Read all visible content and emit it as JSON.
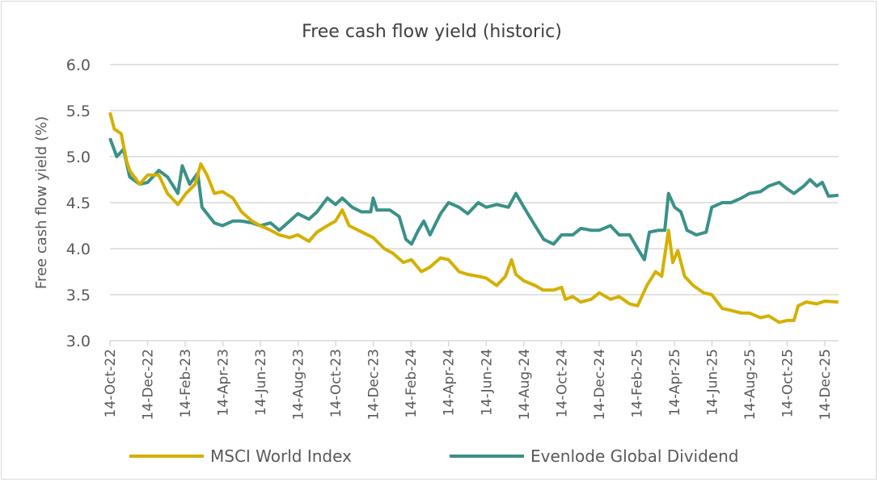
{
  "chart_data": {
    "type": "line",
    "title": "Free cash flow yield (historic)",
    "xlabel": "",
    "ylabel": "Free cash flow yield (%)",
    "ylim": [
      3.0,
      6.0
    ],
    "yticks": [
      "3.0",
      "3.5",
      "4.0",
      "4.5",
      "5.0",
      "5.5",
      "6.0"
    ],
    "xlim": [
      "2022-10-14",
      "2026-01-05"
    ],
    "xticks": [
      "14-Oct-22",
      "14-Dec-22",
      "14-Feb-23",
      "14-Apr-23",
      "14-Jun-23",
      "14-Aug-23",
      "14-Oct-23",
      "14-Dec-23",
      "14-Feb-24",
      "14-Apr-24",
      "14-Jun-24",
      "14-Aug-24",
      "14-Oct-24",
      "14-Dec-24",
      "14-Feb-25",
      "14-Apr-25",
      "14-Jun-25",
      "14-Aug-25",
      "14-Oct-25",
      "14-Dec-25"
    ],
    "grid": true,
    "legend_placement": "bottom",
    "series": [
      {
        "name": "MSCI World Index",
        "color": "#d4b000",
        "points": [
          [
            "2022-10-14",
            5.48
          ],
          [
            "2022-10-21",
            5.3
          ],
          [
            "2022-11-01",
            5.25
          ],
          [
            "2022-11-10",
            4.95
          ],
          [
            "2022-11-15",
            4.85
          ],
          [
            "2022-12-01",
            4.7
          ],
          [
            "2022-12-14",
            4.8
          ],
          [
            "2023-01-01",
            4.8
          ],
          [
            "2023-01-15",
            4.6
          ],
          [
            "2023-02-01",
            4.48
          ],
          [
            "2023-02-14",
            4.6
          ],
          [
            "2023-03-01",
            4.7
          ],
          [
            "2023-03-10",
            4.92
          ],
          [
            "2023-03-20",
            4.8
          ],
          [
            "2023-04-01",
            4.6
          ],
          [
            "2023-04-14",
            4.62
          ],
          [
            "2023-05-01",
            4.55
          ],
          [
            "2023-05-15",
            4.4
          ],
          [
            "2023-06-01",
            4.3
          ],
          [
            "2023-06-14",
            4.25
          ],
          [
            "2023-07-01",
            4.2
          ],
          [
            "2023-07-15",
            4.15
          ],
          [
            "2023-08-01",
            4.12
          ],
          [
            "2023-08-14",
            4.15
          ],
          [
            "2023-09-01",
            4.08
          ],
          [
            "2023-09-14",
            4.18
          ],
          [
            "2023-10-01",
            4.25
          ],
          [
            "2023-10-14",
            4.3
          ],
          [
            "2023-10-25",
            4.42
          ],
          [
            "2023-11-05",
            4.25
          ],
          [
            "2023-11-20",
            4.2
          ],
          [
            "2023-12-14",
            4.12
          ],
          [
            "2024-01-01",
            4.0
          ],
          [
            "2024-01-15",
            3.95
          ],
          [
            "2024-02-01",
            3.85
          ],
          [
            "2024-02-14",
            3.88
          ],
          [
            "2024-03-01",
            3.75
          ],
          [
            "2024-03-15",
            3.8
          ],
          [
            "2024-04-01",
            3.9
          ],
          [
            "2024-04-14",
            3.88
          ],
          [
            "2024-05-01",
            3.75
          ],
          [
            "2024-05-15",
            3.72
          ],
          [
            "2024-06-01",
            3.7
          ],
          [
            "2024-06-14",
            3.68
          ],
          [
            "2024-07-01",
            3.6
          ],
          [
            "2024-07-15",
            3.7
          ],
          [
            "2024-07-25",
            3.88
          ],
          [
            "2024-08-01",
            3.72
          ],
          [
            "2024-08-14",
            3.65
          ],
          [
            "2024-09-01",
            3.6
          ],
          [
            "2024-09-14",
            3.55
          ],
          [
            "2024-10-01",
            3.55
          ],
          [
            "2024-10-14",
            3.58
          ],
          [
            "2024-10-20",
            3.45
          ],
          [
            "2024-11-01",
            3.48
          ],
          [
            "2024-11-14",
            3.42
          ],
          [
            "2024-12-01",
            3.45
          ],
          [
            "2024-12-14",
            3.52
          ],
          [
            "2025-01-01",
            3.45
          ],
          [
            "2025-01-15",
            3.48
          ],
          [
            "2025-02-01",
            3.4
          ],
          [
            "2025-02-14",
            3.38
          ],
          [
            "2025-03-01",
            3.6
          ],
          [
            "2025-03-15",
            3.75
          ],
          [
            "2025-03-25",
            3.7
          ],
          [
            "2025-04-05",
            4.2
          ],
          [
            "2025-04-12",
            3.85
          ],
          [
            "2025-04-20",
            3.98
          ],
          [
            "2025-05-01",
            3.7
          ],
          [
            "2025-05-15",
            3.6
          ],
          [
            "2025-06-01",
            3.52
          ],
          [
            "2025-06-14",
            3.5
          ],
          [
            "2025-07-01",
            3.35
          ],
          [
            "2025-07-15",
            3.33
          ],
          [
            "2025-08-01",
            3.3
          ],
          [
            "2025-08-14",
            3.3
          ],
          [
            "2025-09-01",
            3.25
          ],
          [
            "2025-09-14",
            3.27
          ],
          [
            "2025-10-01",
            3.2
          ],
          [
            "2025-10-14",
            3.22
          ],
          [
            "2025-10-25",
            3.22
          ],
          [
            "2025-11-01",
            3.38
          ],
          [
            "2025-11-14",
            3.42
          ],
          [
            "2025-12-01",
            3.4
          ],
          [
            "2025-12-14",
            3.43
          ],
          [
            "2026-01-05",
            3.42
          ]
        ]
      },
      {
        "name": "Evenlode Global Dividend",
        "color": "#3a9188",
        "points": [
          [
            "2022-10-14",
            5.2
          ],
          [
            "2022-10-25",
            5.0
          ],
          [
            "2022-11-05",
            5.08
          ],
          [
            "2022-11-15",
            4.78
          ],
          [
            "2022-12-01",
            4.7
          ],
          [
            "2022-12-14",
            4.72
          ],
          [
            "2023-01-01",
            4.85
          ],
          [
            "2023-01-15",
            4.78
          ],
          [
            "2023-02-01",
            4.6
          ],
          [
            "2023-02-08",
            4.9
          ],
          [
            "2023-02-20",
            4.7
          ],
          [
            "2023-03-05",
            4.82
          ],
          [
            "2023-03-12",
            4.45
          ],
          [
            "2023-04-01",
            4.28
          ],
          [
            "2023-04-14",
            4.25
          ],
          [
            "2023-05-01",
            4.3
          ],
          [
            "2023-05-15",
            4.3
          ],
          [
            "2023-06-01",
            4.28
          ],
          [
            "2023-06-14",
            4.25
          ],
          [
            "2023-07-01",
            4.28
          ],
          [
            "2023-07-15",
            4.2
          ],
          [
            "2023-08-01",
            4.3
          ],
          [
            "2023-08-14",
            4.38
          ],
          [
            "2023-09-01",
            4.32
          ],
          [
            "2023-09-14",
            4.4
          ],
          [
            "2023-10-01",
            4.55
          ],
          [
            "2023-10-14",
            4.48
          ],
          [
            "2023-10-25",
            4.55
          ],
          [
            "2023-11-10",
            4.45
          ],
          [
            "2023-11-25",
            4.4
          ],
          [
            "2023-12-10",
            4.4
          ],
          [
            "2023-12-14",
            4.55
          ],
          [
            "2023-12-20",
            4.42
          ],
          [
            "2024-01-10",
            4.42
          ],
          [
            "2024-01-25",
            4.35
          ],
          [
            "2024-02-05",
            4.1
          ],
          [
            "2024-02-14",
            4.05
          ],
          [
            "2024-02-25",
            4.2
          ],
          [
            "2024-03-05",
            4.3
          ],
          [
            "2024-03-15",
            4.15
          ],
          [
            "2024-04-01",
            4.38
          ],
          [
            "2024-04-14",
            4.5
          ],
          [
            "2024-05-01",
            4.45
          ],
          [
            "2024-05-15",
            4.38
          ],
          [
            "2024-06-01",
            4.5
          ],
          [
            "2024-06-14",
            4.45
          ],
          [
            "2024-07-01",
            4.48
          ],
          [
            "2024-07-20",
            4.45
          ],
          [
            "2024-08-01",
            4.6
          ],
          [
            "2024-08-14",
            4.45
          ],
          [
            "2024-09-01",
            4.25
          ],
          [
            "2024-09-15",
            4.1
          ],
          [
            "2024-10-01",
            4.05
          ],
          [
            "2024-10-14",
            4.15
          ],
          [
            "2024-11-01",
            4.15
          ],
          [
            "2024-11-14",
            4.22
          ],
          [
            "2024-12-01",
            4.2
          ],
          [
            "2024-12-14",
            4.2
          ],
          [
            "2025-01-01",
            4.25
          ],
          [
            "2025-01-15",
            4.15
          ],
          [
            "2025-02-01",
            4.15
          ],
          [
            "2025-02-14",
            4.0
          ],
          [
            "2025-02-25",
            3.88
          ],
          [
            "2025-03-05",
            4.18
          ],
          [
            "2025-03-20",
            4.2
          ],
          [
            "2025-03-30",
            4.2
          ],
          [
            "2025-04-05",
            4.6
          ],
          [
            "2025-04-15",
            4.45
          ],
          [
            "2025-04-25",
            4.4
          ],
          [
            "2025-05-05",
            4.2
          ],
          [
            "2025-05-20",
            4.15
          ],
          [
            "2025-06-05",
            4.18
          ],
          [
            "2025-06-14",
            4.45
          ],
          [
            "2025-07-01",
            4.5
          ],
          [
            "2025-07-15",
            4.5
          ],
          [
            "2025-08-01",
            4.55
          ],
          [
            "2025-08-14",
            4.6
          ],
          [
            "2025-09-01",
            4.62
          ],
          [
            "2025-09-14",
            4.68
          ],
          [
            "2025-10-01",
            4.72
          ],
          [
            "2025-10-14",
            4.65
          ],
          [
            "2025-10-25",
            4.6
          ],
          [
            "2025-11-10",
            4.68
          ],
          [
            "2025-11-20",
            4.75
          ],
          [
            "2025-12-01",
            4.68
          ],
          [
            "2025-12-10",
            4.72
          ],
          [
            "2025-12-20",
            4.57
          ],
          [
            "2026-01-05",
            4.58
          ]
        ]
      }
    ]
  }
}
